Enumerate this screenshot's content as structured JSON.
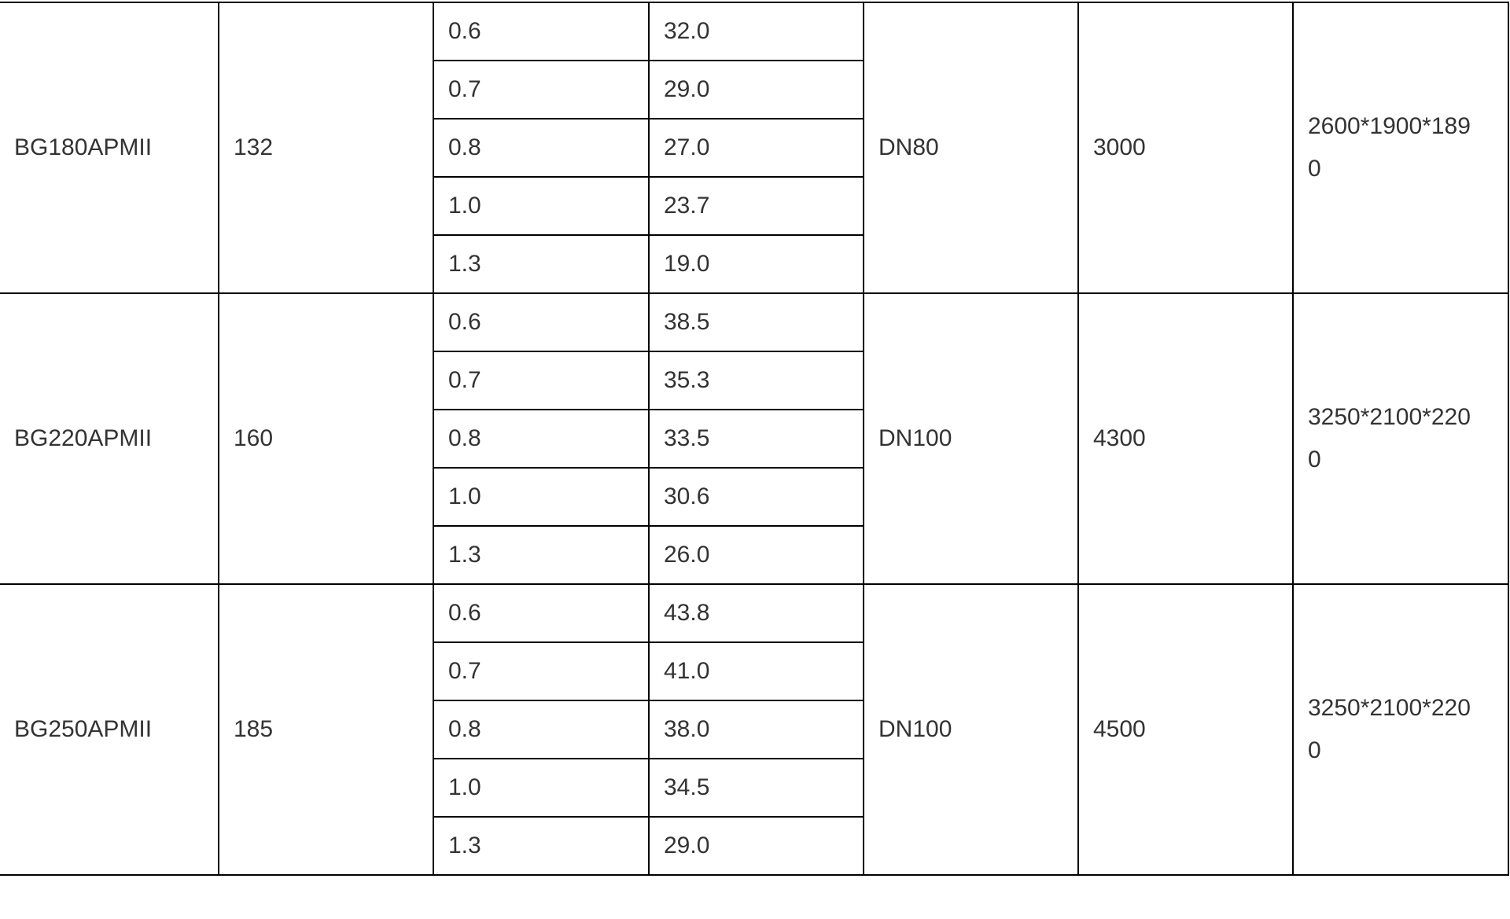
{
  "groups": [
    {
      "model": "BG180APMII",
      "power": "132",
      "outlet": "DN80",
      "weight": "3000",
      "dimensions": "2600*1900*1890",
      "rows": [
        {
          "pressure": "0.6",
          "flow": "32.0"
        },
        {
          "pressure": "0.7",
          "flow": "29.0"
        },
        {
          "pressure": "0.8",
          "flow": "27.0"
        },
        {
          "pressure": "1.0",
          "flow": "23.7"
        },
        {
          "pressure": "1.3",
          "flow": "19.0"
        }
      ]
    },
    {
      "model": "BG220APMII",
      "power": "160",
      "outlet": "DN100",
      "weight": "4300",
      "dimensions": "3250*2100*2200",
      "rows": [
        {
          "pressure": "0.6",
          "flow": "38.5"
        },
        {
          "pressure": "0.7",
          "flow": "35.3"
        },
        {
          "pressure": "0.8",
          "flow": "33.5"
        },
        {
          "pressure": "1.0",
          "flow": "30.6"
        },
        {
          "pressure": "1.3",
          "flow": "26.0"
        }
      ]
    },
    {
      "model": "BG250APMII",
      "power": "185",
      "outlet": "DN100",
      "weight": "4500",
      "dimensions": "3250*2100*2200",
      "rows": [
        {
          "pressure": "0.6",
          "flow": "43.8"
        },
        {
          "pressure": "0.7",
          "flow": "41.0"
        },
        {
          "pressure": "0.8",
          "flow": "38.0"
        },
        {
          "pressure": "1.0",
          "flow": "34.5"
        },
        {
          "pressure": "1.3",
          "flow": "29.0"
        }
      ]
    }
  ]
}
